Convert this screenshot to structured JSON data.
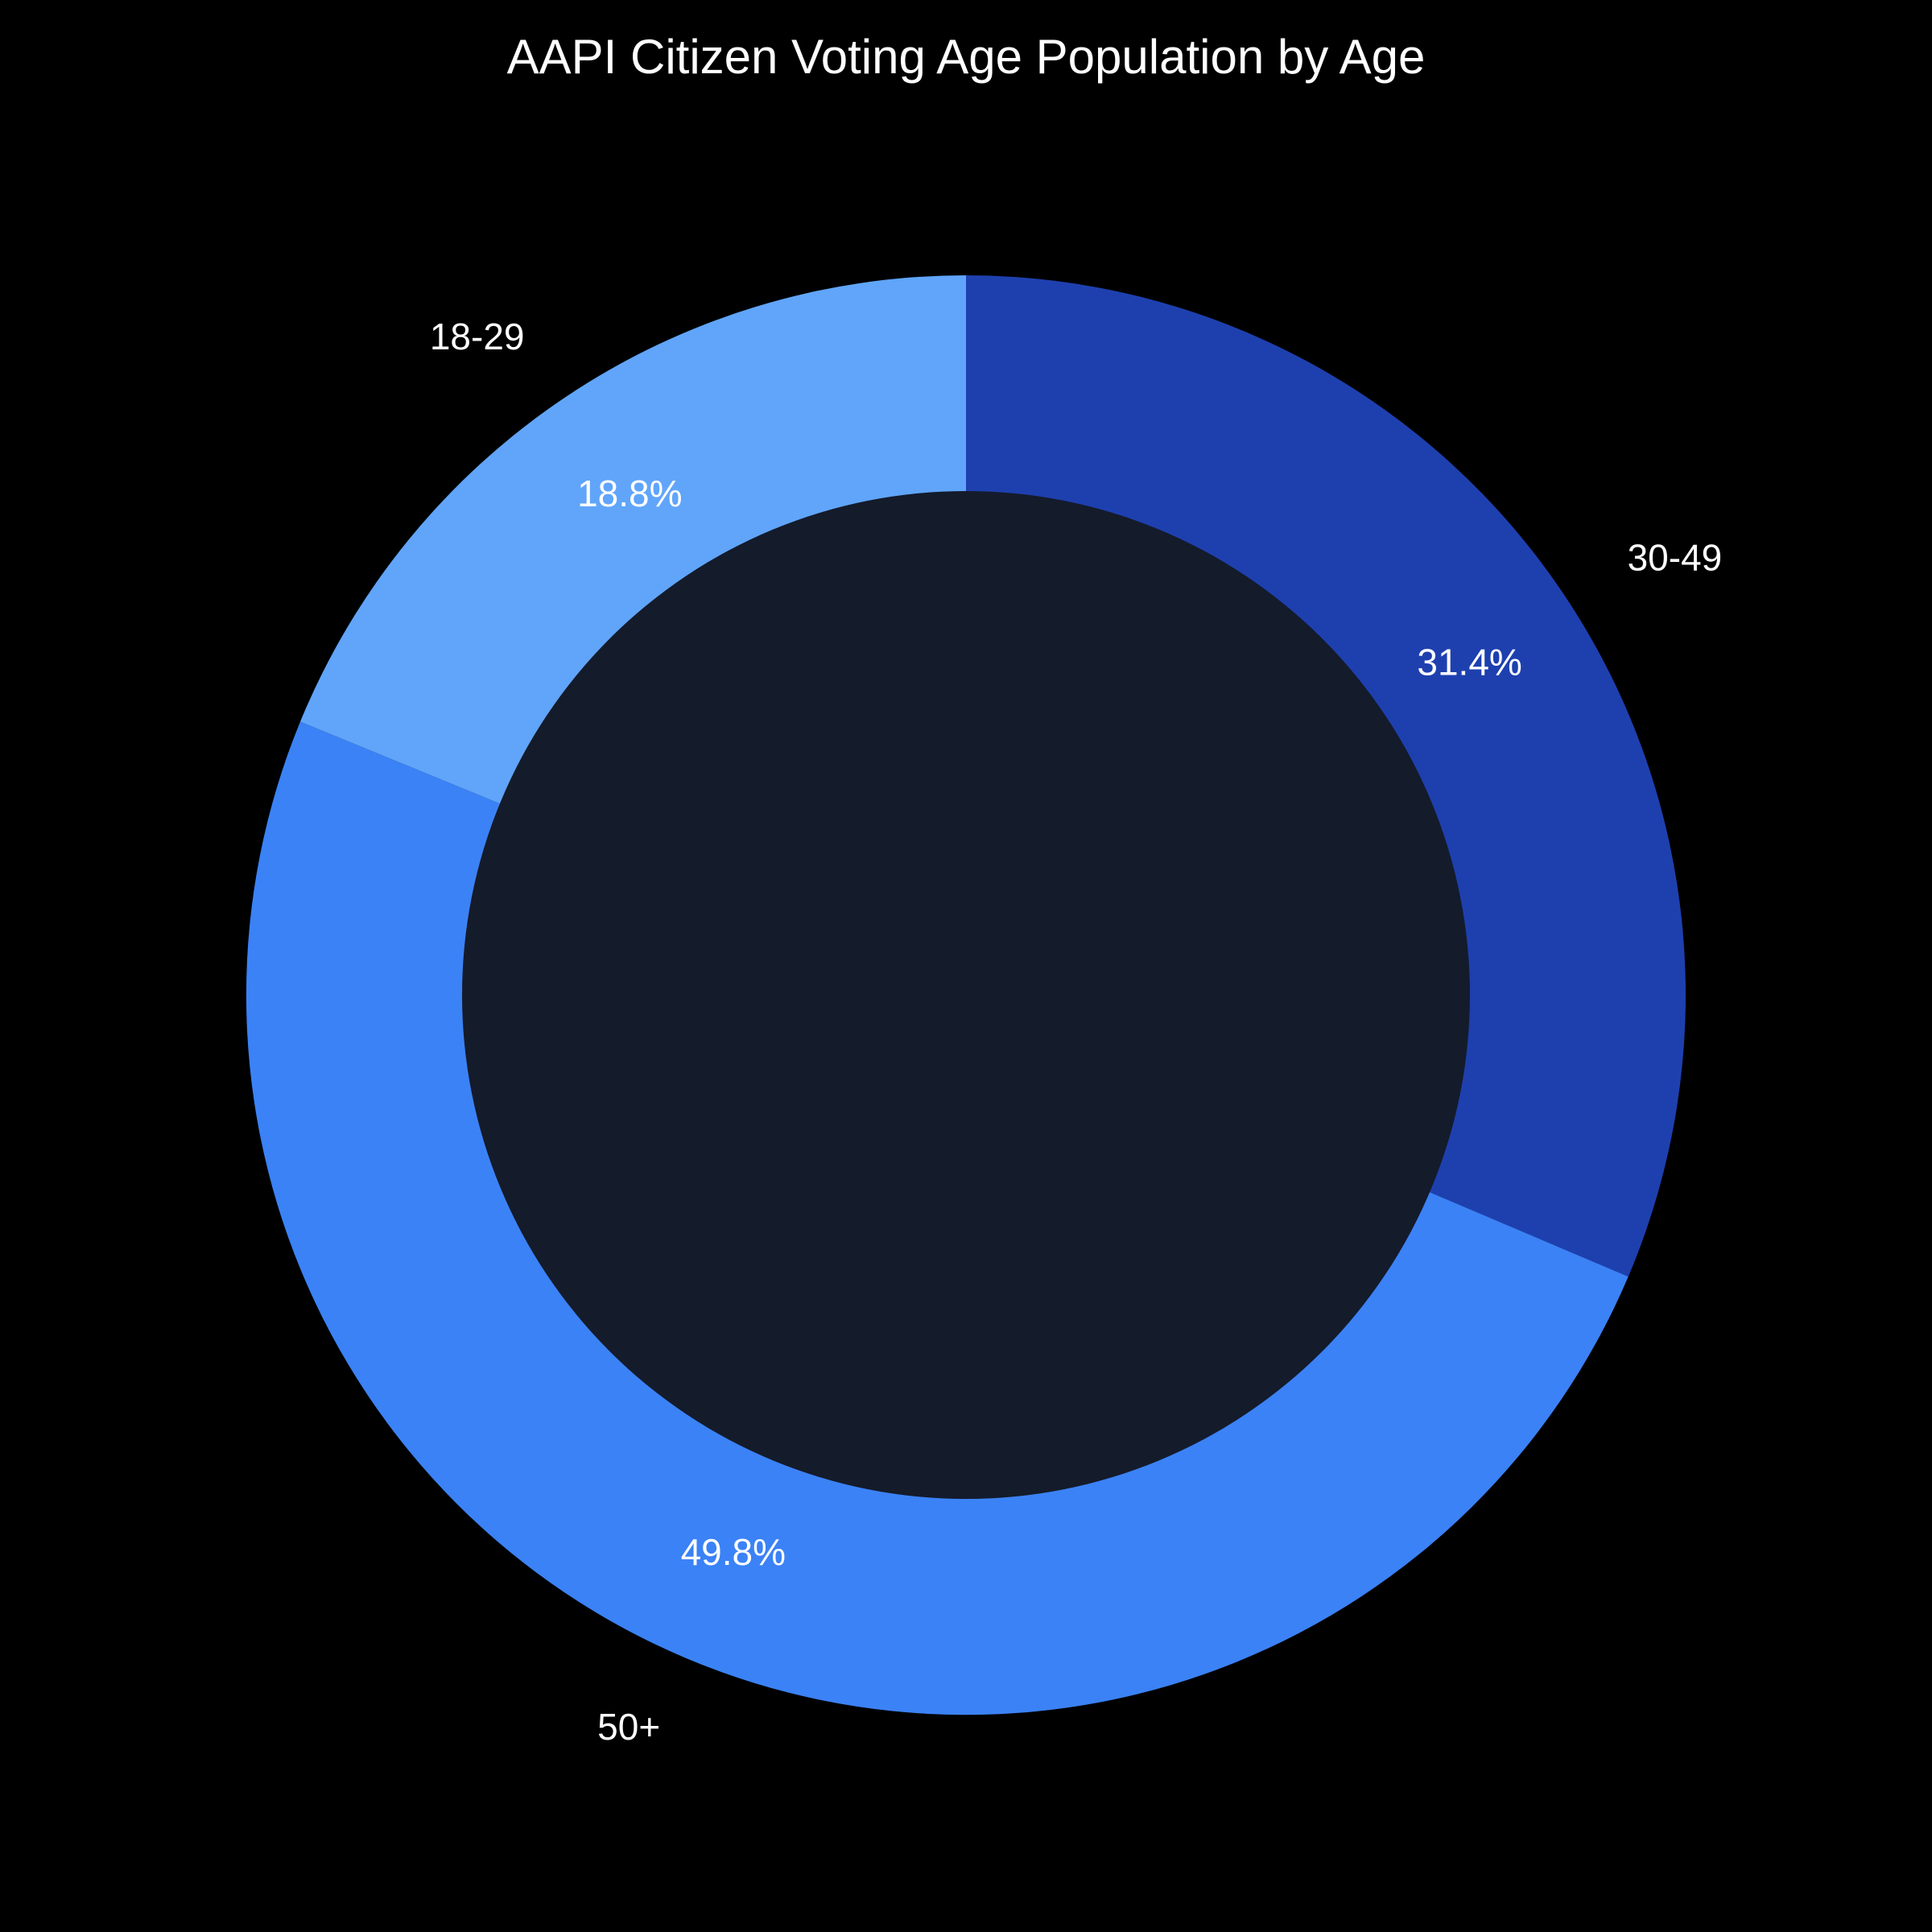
{
  "page": {
    "background": "#000000",
    "text_color": "#ffffff"
  },
  "chart_data": {
    "type": "pie",
    "subtype": "donut",
    "title": "AAPI Citizen Voting Age Population by Age",
    "labels": [
      "30-49",
      "50+",
      "18-29"
    ],
    "values": [
      31.4,
      49.8,
      18.8
    ],
    "percent_labels": [
      "31.4%",
      "49.8%",
      "18.8%"
    ],
    "colors": [
      "#1e40af",
      "#3b82f6",
      "#60a5fa"
    ],
    "hole_ratio": 0.7,
    "hole_color": "#141b2b",
    "start_angle_deg": 0,
    "direction": "clockwise",
    "legend": "none",
    "category_label_position": "outside",
    "percent_label_position": "inside",
    "background": "#000000",
    "text_color": "#ffffff"
  }
}
